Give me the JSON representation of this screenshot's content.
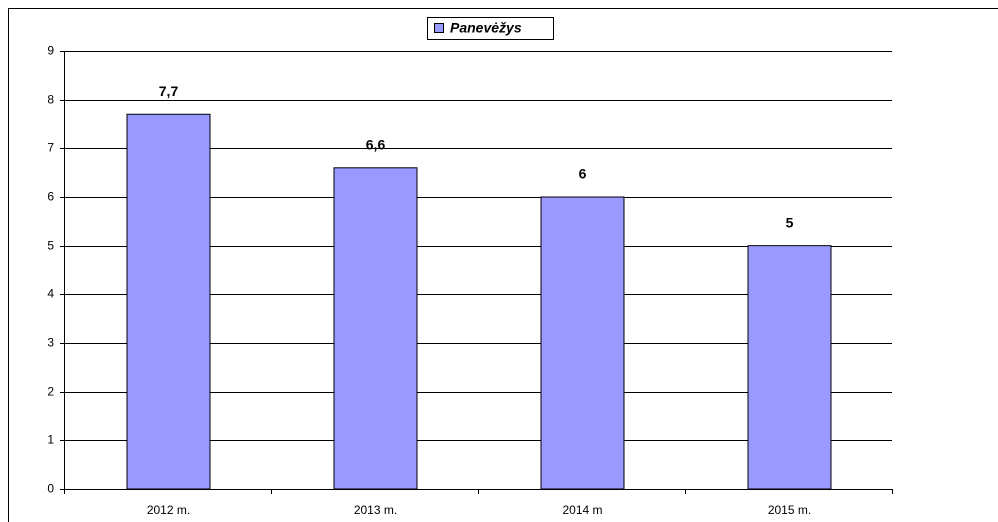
{
  "chart_data": {
    "type": "bar",
    "categories": [
      "2012 m.",
      "2013 m.",
      "2014 m",
      "2015 m."
    ],
    "series": [
      {
        "name": "Panevėžys",
        "color": "#9999ff",
        "values": [
          7.7,
          6.6,
          6,
          5
        ],
        "value_labels": [
          "7,7",
          "6,6",
          "6",
          "5"
        ]
      }
    ],
    "ylim": [
      0,
      9
    ],
    "yticks": [
      0,
      1,
      2,
      3,
      4,
      5,
      6,
      7,
      8,
      9
    ],
    "grid": true,
    "legend": "top"
  }
}
